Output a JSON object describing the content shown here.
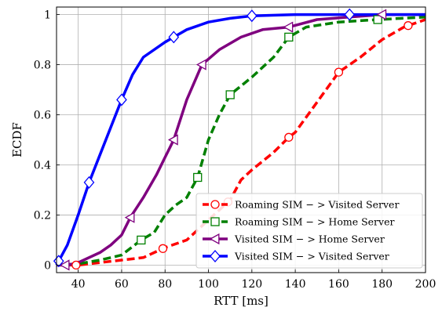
{
  "chart_data": {
    "type": "line",
    "title": "",
    "xlabel": "RTT [ms]",
    "ylabel": "ECDF",
    "xlim": [
      30,
      200
    ],
    "ylim": [
      -0.03,
      1.03
    ],
    "xticks": [
      40,
      60,
      80,
      100,
      120,
      140,
      160,
      180,
      200
    ],
    "yticks": [
      0,
      0.2,
      0.4,
      0.6,
      0.8,
      1
    ],
    "grid": true,
    "legend_position": "lower-right",
    "series": [
      {
        "name": "Roaming SIM − > Visited Server",
        "color": "#ff0000",
        "marker": "circle",
        "line_style": "dashed",
        "points": [
          [
            30,
            0
          ],
          [
            40,
            0
          ],
          [
            50,
            0.01
          ],
          [
            60,
            0.02
          ],
          [
            70,
            0.03
          ],
          [
            80,
            0.07
          ],
          [
            90,
            0.1
          ],
          [
            100,
            0.18
          ],
          [
            110,
            0.26
          ],
          [
            115,
            0.34
          ],
          [
            120,
            0.38
          ],
          [
            130,
            0.45
          ],
          [
            137,
            0.51
          ],
          [
            140,
            0.53
          ],
          [
            150,
            0.65
          ],
          [
            160,
            0.77
          ],
          [
            170,
            0.83
          ],
          [
            180,
            0.9
          ],
          [
            190,
            0.95
          ],
          [
            200,
            0.98
          ]
        ],
        "marker_x": [
          39,
          79,
          109,
          137,
          160,
          192
        ]
      },
      {
        "name": "Roaming SIM − > Home Server",
        "color": "#008000",
        "marker": "square",
        "line_style": "dashed",
        "points": [
          [
            30,
            0
          ],
          [
            40,
            0.005
          ],
          [
            50,
            0.02
          ],
          [
            60,
            0.04
          ],
          [
            69,
            0.1
          ],
          [
            75,
            0.13
          ],
          [
            80,
            0.2
          ],
          [
            85,
            0.24
          ],
          [
            90,
            0.27
          ],
          [
            95,
            0.35
          ],
          [
            100,
            0.5
          ],
          [
            105,
            0.6
          ],
          [
            110,
            0.68
          ],
          [
            120,
            0.75
          ],
          [
            130,
            0.83
          ],
          [
            137,
            0.91
          ],
          [
            145,
            0.95
          ],
          [
            160,
            0.97
          ],
          [
            178,
            0.98
          ],
          [
            200,
            0.99
          ]
        ],
        "marker_x": [
          69,
          95,
          110,
          137,
          178
        ]
      },
      {
        "name": "Visited SIM − > Home Server",
        "color": "#7f007f",
        "marker": "triangle-left",
        "line_style": "solid",
        "points": [
          [
            30,
            0
          ],
          [
            35,
            0
          ],
          [
            40,
            0.01
          ],
          [
            50,
            0.05
          ],
          [
            55,
            0.08
          ],
          [
            60,
            0.12
          ],
          [
            64,
            0.19
          ],
          [
            70,
            0.27
          ],
          [
            76,
            0.36
          ],
          [
            80,
            0.43
          ],
          [
            84,
            0.5
          ],
          [
            90,
            0.66
          ],
          [
            97,
            0.8
          ],
          [
            105,
            0.86
          ],
          [
            115,
            0.91
          ],
          [
            125,
            0.94
          ],
          [
            137,
            0.95
          ],
          [
            150,
            0.98
          ],
          [
            165,
            0.99
          ],
          [
            180,
            1
          ],
          [
            200,
            1
          ]
        ],
        "marker_x": [
          34,
          64,
          84,
          97,
          137,
          180
        ]
      },
      {
        "name": "Visited SIM − > Visited Server",
        "color": "#0000ff",
        "marker": "diamond",
        "line_style": "solid",
        "points": [
          [
            30,
            0
          ],
          [
            35,
            0.08
          ],
          [
            40,
            0.2
          ],
          [
            45,
            0.33
          ],
          [
            50,
            0.44
          ],
          [
            55,
            0.55
          ],
          [
            60,
            0.66
          ],
          [
            65,
            0.76
          ],
          [
            70,
            0.83
          ],
          [
            80,
            0.89
          ],
          [
            84,
            0.91
          ],
          [
            90,
            0.94
          ],
          [
            100,
            0.97
          ],
          [
            110,
            0.985
          ],
          [
            120,
            0.995
          ],
          [
            140,
            1
          ],
          [
            200,
            1
          ]
        ],
        "marker_x": [
          31,
          45,
          60,
          84,
          120,
          165
        ]
      }
    ]
  }
}
